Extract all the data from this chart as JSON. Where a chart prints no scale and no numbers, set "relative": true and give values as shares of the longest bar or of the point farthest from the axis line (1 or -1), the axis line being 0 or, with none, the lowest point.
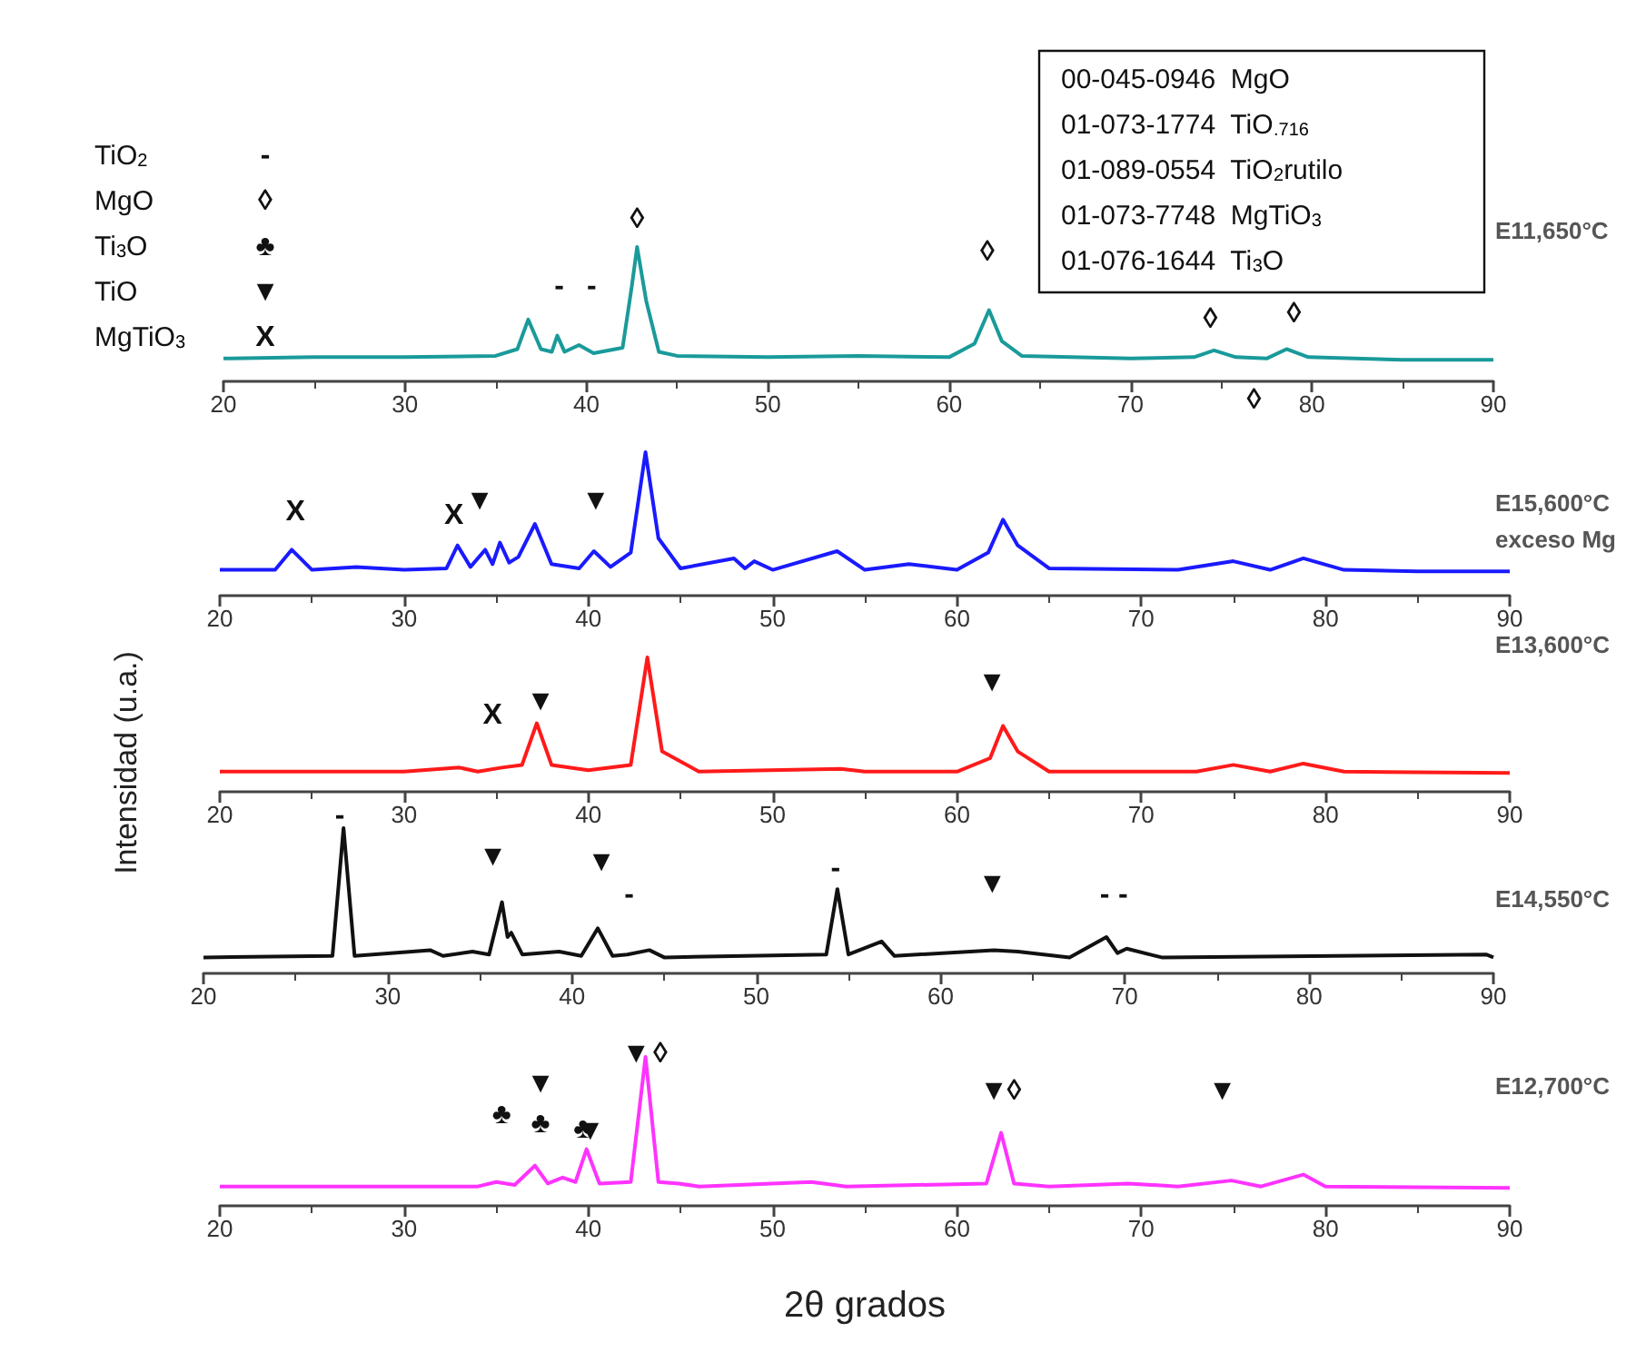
{
  "chart_data": [
    {
      "type": "line",
      "relative": true,
      "xlim": [
        20,
        90
      ],
      "xticks": [
        20,
        30,
        40,
        50,
        60,
        70,
        80,
        90
      ],
      "x": [
        20,
        25,
        30,
        35,
        36.2,
        36.8,
        37.5,
        38.1,
        38.4,
        38.8,
        39.6,
        40.4,
        42.0,
        42.5,
        42.8,
        43.3,
        44.0,
        45,
        50,
        55,
        60,
        61.4,
        62.2,
        62.9,
        64,
        70,
        73.5,
        74.6,
        75.8,
        77.5,
        78.6,
        79.8,
        85,
        90
      ],
      "series": [
        {
          "name": "E11,650°C",
          "color": "#1a9a9a",
          "values": [
            0.17,
            0.18,
            0.18,
            0.19,
            0.24,
            0.46,
            0.24,
            0.22,
            0.34,
            0.22,
            0.27,
            0.21,
            0.25,
            0.7,
            1,
            0.6,
            0.22,
            0.19,
            0.18,
            0.19,
            0.18,
            0.28,
            0.53,
            0.3,
            0.19,
            0.17,
            0.18,
            0.23,
            0.18,
            0.17,
            0.24,
            0.18,
            0.16,
            0.16
          ]
        }
      ],
      "annotations": [
        "TiO$_{2}$",
        "-",
        "MgO",
        "◊",
        "Ti$_{3}$O",
        "♣",
        "TiO",
        "▼",
        "MgTiO$_{3}$",
        "X",
        "00-045-0946  MgO",
        "01-073-1774  TiO$_{.716}$",
        "01-089-0554  TiO$_{2}$rutilo",
        "01-073-7748  MgTiO$_{3}$",
        "01-076-1644  Ti$_{3}$O",
        "-",
        "-",
        "◊",
        "◊",
        "◊",
        "◊",
        "◊"
      ]
    },
    {
      "type": "line",
      "relative": true,
      "xlim": [
        20,
        90
      ],
      "xticks": [
        20,
        30,
        40,
        50,
        60,
        70,
        80,
        90
      ],
      "x": [
        20,
        23,
        23.9,
        25,
        27.4,
        30,
        32.3,
        32.9,
        33.6,
        34.4,
        34.8,
        35.2,
        35.7,
        36.2,
        37.1,
        38.0,
        39.5,
        40.3,
        41.2,
        42.3,
        43.1,
        43.8,
        45,
        47.9,
        48.5,
        49.0,
        50,
        53.5,
        55,
        57.4,
        60,
        61.7,
        62.5,
        63.3,
        65,
        72,
        75.0,
        77,
        78.8,
        81,
        85,
        90
      ],
      "series": [
        {
          "name": "E15,600°C exceso Mg",
          "color": "#1a1aff",
          "values": [
            0.18,
            0.18,
            0.32,
            0.18,
            0.2,
            0.18,
            0.19,
            0.35,
            0.2,
            0.32,
            0.22,
            0.37,
            0.23,
            0.27,
            0.5,
            0.22,
            0.19,
            0.31,
            0.2,
            0.3,
            1,
            0.4,
            0.19,
            0.26,
            0.19,
            0.24,
            0.18,
            0.31,
            0.18,
            0.22,
            0.18,
            0.3,
            0.53,
            0.35,
            0.19,
            0.18,
            0.24,
            0.18,
            0.26,
            0.18,
            0.17,
            0.17
          ]
        }
      ],
      "annotations": [
        "X",
        "X",
        "▼",
        "▼"
      ]
    },
    {
      "type": "line",
      "relative": true,
      "xlim": [
        20,
        90
      ],
      "xticks": [
        20,
        30,
        40,
        50,
        60,
        70,
        80,
        90
      ],
      "ylabel": "Intensidad (u.a.)",
      "x": [
        20,
        30,
        33,
        34,
        35.3,
        36.4,
        37.2,
        38.0,
        40,
        42.3,
        43.2,
        44.0,
        46,
        53.7,
        55,
        60,
        61.8,
        62.5,
        63.3,
        65,
        73,
        75.0,
        77,
        78.8,
        81,
        90
      ],
      "series": [
        {
          "name": "E13,600°C",
          "color": "#ff1a1a",
          "values": [
            0.15,
            0.15,
            0.18,
            0.15,
            0.18,
            0.2,
            0.51,
            0.2,
            0.16,
            0.2,
            1,
            0.3,
            0.15,
            0.17,
            0.15,
            0.15,
            0.25,
            0.49,
            0.3,
            0.15,
            0.15,
            0.2,
            0.15,
            0.21,
            0.15,
            0.14
          ]
        }
      ],
      "annotations": [
        "X",
        "▼",
        "▼"
      ]
    },
    {
      "type": "line",
      "relative": true,
      "xlim": [
        20,
        90
      ],
      "xticks": [
        20,
        30,
        40,
        50,
        60,
        70,
        80,
        90
      ],
      "x": [
        20,
        27.0,
        27.6,
        28.2,
        32.3,
        33,
        34.6,
        35.5,
        36.2,
        36.5,
        36.7,
        37.3,
        39.3,
        40.5,
        41.4,
        42.2,
        43.0,
        44.2,
        45,
        53.8,
        54.4,
        55.0,
        56.8,
        57.5,
        62.9,
        64.2,
        67,
        69.0,
        69.6,
        70.1,
        72,
        89.6,
        90
      ],
      "series": [
        {
          "name": "E14,550°C",
          "color": "#111111",
          "values": [
            0.11,
            0.12,
            1,
            0.12,
            0.16,
            0.12,
            0.15,
            0.13,
            0.49,
            0.25,
            0.28,
            0.13,
            0.15,
            0.12,
            0.31,
            0.12,
            0.13,
            0.16,
            0.11,
            0.13,
            0.58,
            0.13,
            0.22,
            0.12,
            0.16,
            0.15,
            0.11,
            0.25,
            0.14,
            0.17,
            0.11,
            0.13,
            0.11
          ]
        }
      ],
      "annotations": [
        "-",
        "▼",
        "▼",
        "-",
        "-",
        "▼",
        "-",
        "-"
      ]
    },
    {
      "type": "line",
      "relative": true,
      "xlim": [
        20,
        90
      ],
      "xticks": [
        20,
        30,
        40,
        50,
        60,
        70,
        80,
        90
      ],
      "xlabel": "2θ grados",
      "x": [
        20,
        34,
        35.0,
        36,
        37.1,
        37.8,
        38.6,
        39.3,
        39.9,
        40.6,
        42.3,
        43.1,
        43.8,
        44.9,
        46,
        52.1,
        54,
        61.6,
        62.4,
        63.1,
        65,
        69.3,
        72,
        74.9,
        76.5,
        78.8,
        80,
        90
      ],
      "series": [
        {
          "name": "E12,700°C",
          "color": "#ff33ff",
          "values": [
            0.13,
            0.13,
            0.16,
            0.14,
            0.27,
            0.15,
            0.19,
            0.16,
            0.38,
            0.15,
            0.16,
            1,
            0.16,
            0.15,
            0.13,
            0.16,
            0.13,
            0.15,
            0.49,
            0.15,
            0.13,
            0.15,
            0.13,
            0.17,
            0.13,
            0.21,
            0.13,
            0.12
          ]
        }
      ],
      "annotations": [
        "♣",
        "▼",
        "♣",
        "♣",
        "▼",
        "▼",
        "◊",
        "▼",
        "◊",
        "▼"
      ]
    }
  ]
}
